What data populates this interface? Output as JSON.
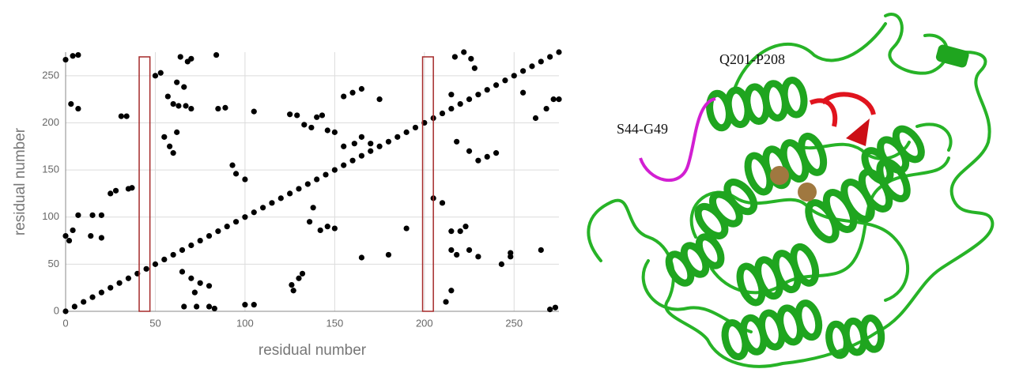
{
  "chart_data": {
    "type": "scatter",
    "xlabel": "residual number",
    "ylabel": "residual number",
    "xlim": [
      0,
      275
    ],
    "ylim": [
      0,
      275
    ],
    "xticks": [
      0,
      50,
      100,
      150,
      200,
      250
    ],
    "yticks": [
      0,
      50,
      100,
      150,
      200,
      250
    ],
    "grid": true,
    "color": "#000000",
    "x": [
      0,
      5,
      10,
      15,
      20,
      25,
      30,
      35,
      40,
      45,
      50,
      55,
      60,
      65,
      70,
      75,
      80,
      85,
      90,
      95,
      100,
      105,
      110,
      115,
      120,
      125,
      130,
      135,
      140,
      145,
      150,
      155,
      160,
      165,
      170,
      175,
      180,
      185,
      190,
      195,
      200,
      205,
      210,
      215,
      220,
      225,
      230,
      235,
      240,
      245,
      250,
      255,
      260,
      265,
      270,
      275,
      0,
      4,
      7,
      3,
      7,
      0,
      4,
      2,
      7,
      15,
      20,
      14,
      20,
      25,
      28,
      31,
      34,
      35,
      37,
      50,
      53,
      55,
      58,
      60,
      62,
      57,
      64,
      68,
      70,
      62,
      66,
      60,
      63,
      67,
      70,
      65,
      70,
      75,
      80,
      72,
      66,
      73,
      80,
      83,
      84,
      85,
      89,
      93,
      95,
      100,
      100,
      105,
      105,
      125,
      129,
      133,
      137,
      140,
      143,
      146,
      150,
      155,
      161,
      165,
      170,
      136,
      138,
      142,
      146,
      150,
      126,
      130,
      132,
      127,
      155,
      160,
      165,
      175,
      165,
      180,
      190,
      205,
      210,
      217,
      222,
      226,
      228,
      215,
      218,
      225,
      230,
      240,
      235,
      215,
      220,
      223,
      215,
      218,
      225,
      215,
      212,
      230,
      243,
      248,
      248,
      265,
      270,
      273,
      268,
      272,
      275,
      262,
      255
    ],
    "values": [
      0,
      5,
      10,
      15,
      20,
      25,
      30,
      35,
      40,
      45,
      50,
      55,
      60,
      65,
      70,
      75,
      80,
      85,
      90,
      95,
      100,
      105,
      110,
      115,
      120,
      125,
      130,
      135,
      140,
      145,
      150,
      155,
      160,
      165,
      170,
      175,
      180,
      185,
      190,
      195,
      200,
      205,
      210,
      215,
      220,
      225,
      230,
      235,
      240,
      245,
      250,
      255,
      260,
      265,
      270,
      275,
      267,
      271,
      272,
      220,
      215,
      80,
      86,
      75,
      102,
      102,
      102,
      80,
      78,
      125,
      128,
      207,
      207,
      130,
      131,
      250,
      253,
      185,
      175,
      168,
      190,
      228,
      270,
      265,
      268,
      243,
      238,
      220,
      218,
      218,
      215,
      42,
      35,
      30,
      27,
      20,
      5,
      5,
      5,
      3,
      272,
      215,
      216,
      155,
      146,
      140,
      7,
      7,
      212,
      209,
      208,
      198,
      195,
      206,
      208,
      192,
      190,
      175,
      178,
      185,
      178,
      95,
      110,
      86,
      90,
      88,
      28,
      35,
      40,
      22,
      228,
      232,
      236,
      225,
      57,
      60,
      88,
      120,
      115,
      270,
      275,
      268,
      258,
      230,
      180,
      170,
      160,
      168,
      164,
      85,
      85,
      90,
      65,
      60,
      65,
      22,
      10,
      58,
      50,
      58,
      62,
      65,
      2,
      4,
      215,
      225,
      225,
      205,
      232
    ],
    "highlight_boxes": [
      {
        "xlim": [
          41,
          47
        ],
        "ylim": [
          0,
          270
        ]
      },
      {
        "xlim": [
          199,
          205
        ],
        "ylim": [
          0,
          270
        ]
      }
    ],
    "highlight_color": "#a52a2a"
  },
  "structure": {
    "labels": [
      "Q201-P208",
      "S44-G49"
    ]
  }
}
